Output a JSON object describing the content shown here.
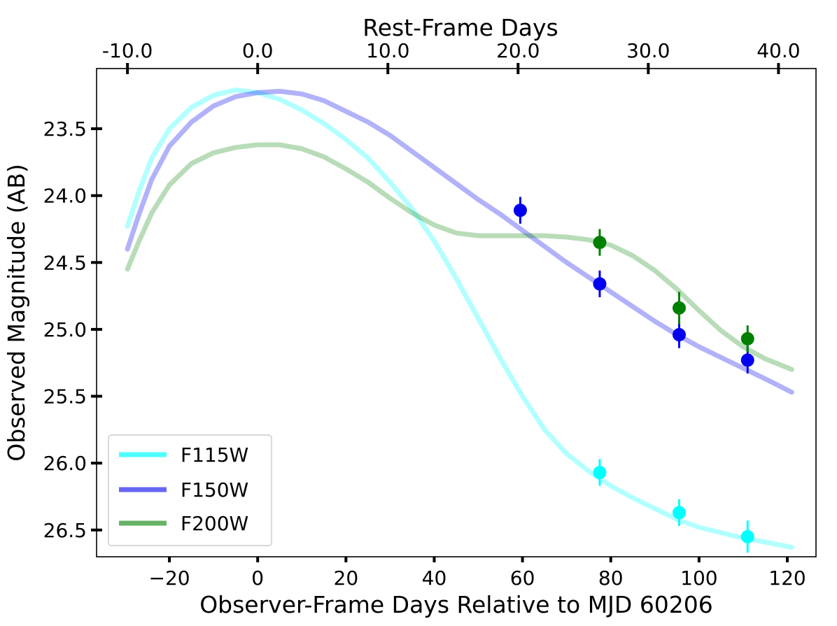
{
  "chart_data": {
    "type": "line",
    "xlabel": "Observer-Frame Days Relative to MJD 60206",
    "ylabel": "Observed Magnitude (AB)",
    "top_xlabel": "Rest-Frame Days",
    "xlim": [
      -36.5,
      126.5
    ],
    "ylim": [
      26.7,
      23.05
    ],
    "y_inverted": true,
    "bottom_ticks": [
      -20,
      0,
      20,
      40,
      60,
      80,
      100,
      120
    ],
    "bottom_tick_labels": [
      "−20",
      "0",
      "20",
      "40",
      "60",
      "80",
      "100",
      "120"
    ],
    "left_ticks": [
      23.5,
      24.0,
      24.5,
      25.0,
      25.5,
      26.0,
      26.5
    ],
    "left_tick_labels": [
      "23.5",
      "24.0",
      "24.5",
      "25.0",
      "25.5",
      "26.0",
      "26.5"
    ],
    "top_ticks_observer_days": [
      -29.5,
      0,
      29.5,
      59,
      88.5,
      118
    ],
    "top_tick_labels": [
      "-10.0",
      "0.0",
      "10.0",
      "20.0",
      "30.0",
      "40.0"
    ],
    "legend_position": "lower-left",
    "series": [
      {
        "name": "F115W",
        "color": "#00ffff",
        "curve_x": [
          -29.5,
          -27,
          -24,
          -20,
          -15,
          -10,
          -5,
          0,
          5,
          10,
          15,
          20,
          25,
          30,
          35,
          40,
          45,
          50,
          55,
          60,
          65,
          70,
          75,
          80,
          85,
          90,
          95,
          100,
          105,
          110,
          115,
          121
        ],
        "curve_y": [
          24.23,
          23.98,
          23.72,
          23.5,
          23.34,
          23.25,
          23.21,
          23.23,
          23.28,
          23.36,
          23.46,
          23.58,
          23.72,
          23.9,
          24.1,
          24.34,
          24.62,
          24.92,
          25.22,
          25.5,
          25.75,
          25.93,
          26.06,
          26.17,
          26.26,
          26.34,
          26.42,
          26.48,
          26.52,
          26.56,
          26.59,
          26.63
        ],
        "points_x": [
          77.5,
          95.5,
          111
        ],
        "points_y": [
          26.07,
          26.37,
          26.55
        ],
        "errors": [
          0.1,
          0.1,
          0.12
        ]
      },
      {
        "name": "F150W",
        "color": "#0000ee",
        "curve_x": [
          -29.5,
          -27,
          -24,
          -20,
          -15,
          -10,
          -5,
          0,
          5,
          10,
          15,
          20,
          25,
          30,
          35,
          40,
          45,
          50,
          55,
          60,
          65,
          70,
          75,
          80,
          85,
          90,
          95,
          100,
          105,
          110,
          115,
          121
        ],
        "curve_y": [
          24.4,
          24.15,
          23.88,
          23.63,
          23.45,
          23.33,
          23.26,
          23.23,
          23.22,
          23.24,
          23.29,
          23.37,
          23.45,
          23.55,
          23.67,
          23.79,
          23.91,
          24.03,
          24.14,
          24.26,
          24.38,
          24.5,
          24.61,
          24.72,
          24.83,
          24.94,
          25.04,
          25.13,
          25.21,
          25.29,
          25.37,
          25.47
        ],
        "points_x": [
          59.5,
          77.5,
          95.5,
          111
        ],
        "points_y": [
          24.11,
          24.66,
          25.04,
          25.23
        ],
        "errors": [
          0.1,
          0.1,
          0.1,
          0.1
        ]
      },
      {
        "name": "F200W",
        "color": "#008000",
        "curve_x": [
          -29.5,
          -27,
          -24,
          -20,
          -15,
          -10,
          -5,
          0,
          5,
          10,
          15,
          20,
          25,
          30,
          35,
          40,
          45,
          50,
          55,
          60,
          65,
          70,
          75,
          80,
          85,
          90,
          95,
          100,
          105,
          110,
          115,
          121
        ],
        "curve_y": [
          24.55,
          24.35,
          24.13,
          23.92,
          23.76,
          23.68,
          23.64,
          23.62,
          23.62,
          23.65,
          23.71,
          23.8,
          23.9,
          24.02,
          24.13,
          24.22,
          24.28,
          24.3,
          24.3,
          24.3,
          24.3,
          24.31,
          24.33,
          24.37,
          24.45,
          24.56,
          24.7,
          24.86,
          25.01,
          25.13,
          25.22,
          25.3
        ],
        "points_x": [
          77.5,
          95.5,
          111
        ],
        "points_y": [
          24.35,
          24.84,
          25.07
        ],
        "errors": [
          0.1,
          0.12,
          0.1
        ]
      }
    ]
  }
}
